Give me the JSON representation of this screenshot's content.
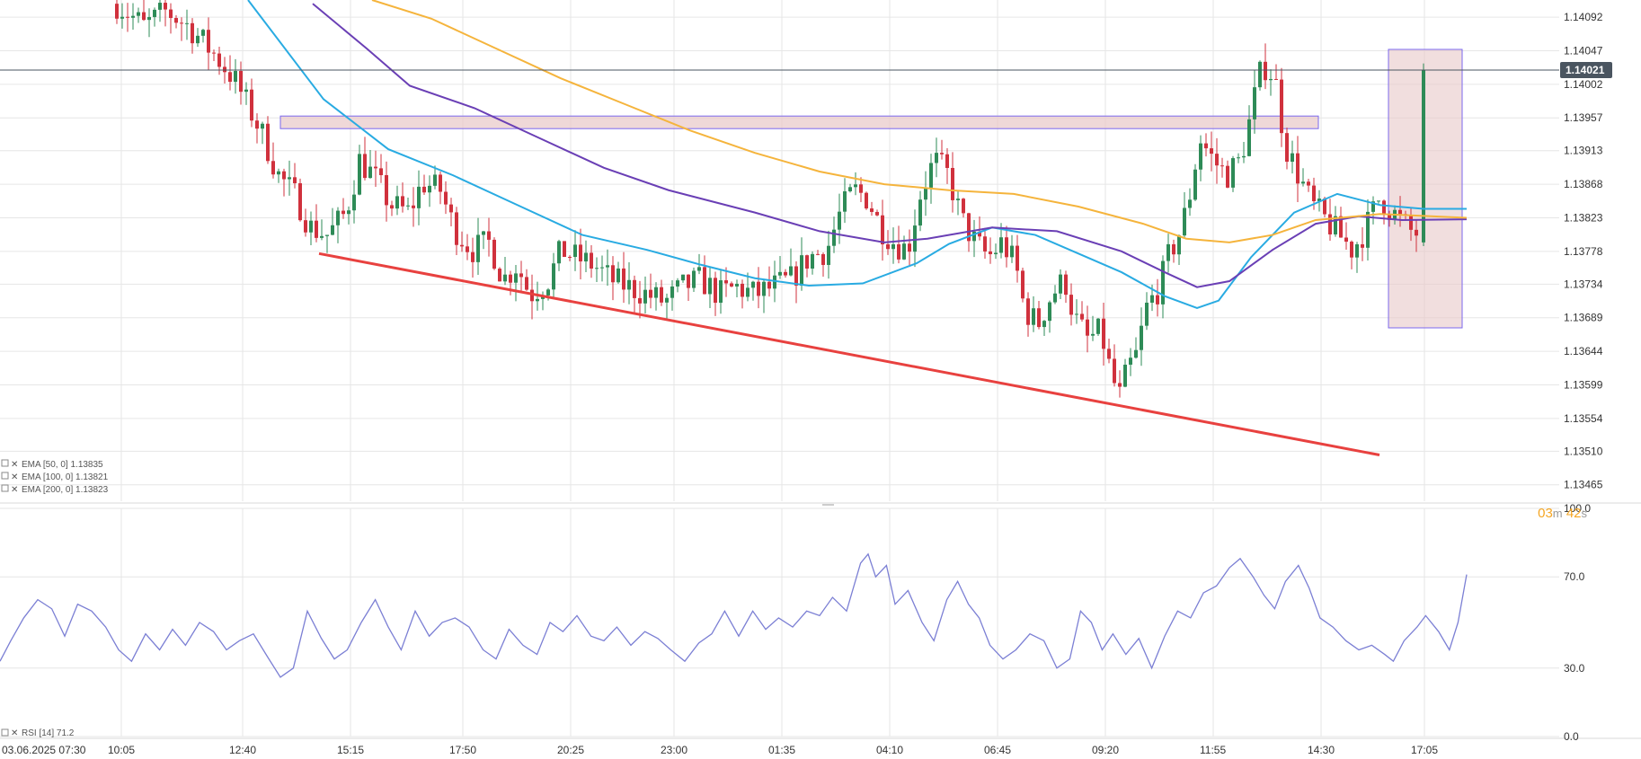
{
  "colors": {
    "bull": "#2e8b57",
    "bear": "#d0313d",
    "ema50": "#29abe2",
    "ema100": "#6a3fb5",
    "ema200": "#f5b43c",
    "trendline": "#e8413f",
    "zone_fill": "#e8c8c8",
    "zone_stroke": "#7b68ee",
    "rsi": "#7b7fd4",
    "grid": "#e6e6e6",
    "price_line": "#4a5560"
  },
  "price_panel": {
    "y_ticks": [
      "1.14092",
      "1.14047",
      "1.14002",
      "1.13957",
      "1.13913",
      "1.13868",
      "1.13823",
      "1.13778",
      "1.13734",
      "1.13689",
      "1.13644",
      "1.13599",
      "1.13554",
      "1.13510",
      "1.13465"
    ],
    "current_price": "1.14021",
    "legend": [
      {
        "label": "EMA [50, 0] 1.13835"
      },
      {
        "label": "EMA [100, 0] 1.13821"
      },
      {
        "label": "EMA [200, 0] 1.13823"
      }
    ],
    "countdown": {
      "minutes": "03",
      "min_unit": "m",
      "seconds": "42",
      "sec_unit": "s"
    }
  },
  "rsi_panel": {
    "y_ticks": [
      "100.0",
      "70.0",
      "30.0",
      "0.0"
    ],
    "legend": "RSI [14] 71.2"
  },
  "x_ticks": [
    "03.06.2025  07:30",
    "10:05",
    "12:40",
    "15:15",
    "17:50",
    "20:25",
    "23:00",
    "01:35",
    "04:10",
    "06:45",
    "09:20",
    "11:55",
    "14:30",
    "17:05"
  ],
  "chart_data": [
    {
      "type": "candlestick",
      "yrange": [
        1.13443,
        1.14115
      ],
      "xrange_index": [
        0,
        1480
      ],
      "series": [
        {
          "name": "EMA [50, 0] 1.13835",
          "points": [
            [
              230,
              1.14115
            ],
            [
              300,
              1.13982
            ],
            [
              360,
              1.13915
            ],
            [
              420,
              1.1388
            ],
            [
              480,
              1.1384
            ],
            [
              540,
              1.138
            ],
            [
              600,
              1.1378
            ],
            [
              650,
              1.1376
            ],
            [
              700,
              1.13742
            ],
            [
              750,
              1.13732
            ],
            [
              800,
              1.13735
            ],
            [
              850,
              1.13762
            ],
            [
              880,
              1.13788
            ],
            [
              920,
              1.1381
            ],
            [
              960,
              1.138
            ],
            [
              1000,
              1.13775
            ],
            [
              1040,
              1.1375
            ],
            [
              1080,
              1.13718
            ],
            [
              1110,
              1.13702
            ],
            [
              1130,
              1.13712
            ],
            [
              1160,
              1.1377
            ],
            [
              1200,
              1.1383
            ],
            [
              1240,
              1.13855
            ],
            [
              1280,
              1.1384
            ],
            [
              1320,
              1.13835
            ],
            [
              1360,
              1.13835
            ]
          ]
        },
        {
          "name": "EMA [100, 0] 1.13821",
          "points": [
            [
              290,
              1.1411
            ],
            [
              340,
              1.1405
            ],
            [
              380,
              1.14
            ],
            [
              440,
              1.1397
            ],
            [
              500,
              1.1393
            ],
            [
              560,
              1.1389
            ],
            [
              620,
              1.1386
            ],
            [
              700,
              1.1383
            ],
            [
              760,
              1.13805
            ],
            [
              820,
              1.1379
            ],
            [
              860,
              1.13795
            ],
            [
              920,
              1.1381
            ],
            [
              980,
              1.13805
            ],
            [
              1040,
              1.13778
            ],
            [
              1080,
              1.1375
            ],
            [
              1110,
              1.1373
            ],
            [
              1140,
              1.13738
            ],
            [
              1180,
              1.1378
            ],
            [
              1220,
              1.13815
            ],
            [
              1260,
              1.13825
            ],
            [
              1300,
              1.1382
            ],
            [
              1360,
              1.13821
            ]
          ]
        },
        {
          "name": "EMA [200, 0] 1.13823",
          "points": [
            [
              345,
              1.14115
            ],
            [
              400,
              1.1409
            ],
            [
              460,
              1.1405
            ],
            [
              520,
              1.1401
            ],
            [
              580,
              1.13975
            ],
            [
              640,
              1.1394
            ],
            [
              700,
              1.1391
            ],
            [
              760,
              1.13885
            ],
            [
              820,
              1.13868
            ],
            [
              880,
              1.1386
            ],
            [
              940,
              1.13855
            ],
            [
              1000,
              1.13838
            ],
            [
              1060,
              1.13815
            ],
            [
              1100,
              1.13795
            ],
            [
              1140,
              1.1379
            ],
            [
              1180,
              1.138
            ],
            [
              1220,
              1.1382
            ],
            [
              1280,
              1.13828
            ],
            [
              1360,
              1.13823
            ]
          ]
        },
        {
          "name": "RSI [14] 71.2",
          "range": [
            0,
            100
          ],
          "points": [
            [
              0,
              33
            ],
            [
              10,
              42
            ],
            [
              22,
              52
            ],
            [
              35,
              60
            ],
            [
              48,
              56
            ],
            [
              60,
              44
            ],
            [
              72,
              58
            ],
            [
              85,
              55
            ],
            [
              98,
              48
            ],
            [
              110,
              38
            ],
            [
              122,
              33
            ],
            [
              135,
              45
            ],
            [
              148,
              38
            ],
            [
              160,
              47
            ],
            [
              172,
              40
            ],
            [
              185,
              50
            ],
            [
              198,
              46
            ],
            [
              210,
              38
            ],
            [
              222,
              42
            ],
            [
              235,
              45
            ],
            [
              248,
              35
            ],
            [
              260,
              26
            ],
            [
              272,
              30
            ],
            [
              285,
              55
            ],
            [
              298,
              43
            ],
            [
              310,
              34
            ],
            [
              322,
              38
            ],
            [
              335,
              50
            ],
            [
              348,
              60
            ],
            [
              360,
              48
            ],
            [
              372,
              38
            ],
            [
              385,
              55
            ],
            [
              398,
              44
            ],
            [
              410,
              50
            ],
            [
              422,
              52
            ],
            [
              435,
              48
            ],
            [
              448,
              38
            ],
            [
              460,
              34
            ],
            [
              472,
              47
            ],
            [
              485,
              40
            ],
            [
              498,
              36
            ],
            [
              510,
              50
            ],
            [
              522,
              46
            ],
            [
              535,
              53
            ],
            [
              548,
              44
            ],
            [
              560,
              42
            ],
            [
              572,
              48
            ],
            [
              585,
              40
            ],
            [
              598,
              46
            ],
            [
              610,
              43
            ],
            [
              622,
              38
            ],
            [
              635,
              33
            ],
            [
              648,
              41
            ],
            [
              660,
              45
            ],
            [
              672,
              55
            ],
            [
              685,
              44
            ],
            [
              698,
              55
            ],
            [
              710,
              47
            ],
            [
              722,
              52
            ],
            [
              735,
              48
            ],
            [
              748,
              55
            ],
            [
              760,
              53
            ],
            [
              772,
              61
            ],
            [
              785,
              55
            ],
            [
              798,
              76
            ],
            [
              805,
              80
            ],
            [
              812,
              70
            ],
            [
              822,
              75
            ],
            [
              830,
              58
            ],
            [
              842,
              64
            ],
            [
              855,
              50
            ],
            [
              866,
              42
            ],
            [
              878,
              60
            ],
            [
              888,
              68
            ],
            [
              898,
              58
            ],
            [
              908,
              52
            ],
            [
              918,
              40
            ],
            [
              930,
              34
            ],
            [
              942,
              38
            ],
            [
              955,
              45
            ],
            [
              968,
              42
            ],
            [
              980,
              30
            ],
            [
              992,
              34
            ],
            [
              1002,
              55
            ],
            [
              1012,
              50
            ],
            [
              1022,
              38
            ],
            [
              1032,
              45
            ],
            [
              1044,
              36
            ],
            [
              1056,
              43
            ],
            [
              1068,
              30
            ],
            [
              1080,
              44
            ],
            [
              1092,
              55
            ],
            [
              1104,
              52
            ],
            [
              1116,
              63
            ],
            [
              1128,
              66
            ],
            [
              1140,
              74
            ],
            [
              1150,
              78
            ],
            [
              1162,
              70
            ],
            [
              1172,
              62
            ],
            [
              1182,
              56
            ],
            [
              1192,
              68
            ],
            [
              1204,
              75
            ],
            [
              1214,
              65
            ],
            [
              1224,
              52
            ],
            [
              1236,
              48
            ],
            [
              1248,
              42
            ],
            [
              1260,
              38
            ],
            [
              1272,
              40
            ],
            [
              1284,
              36
            ],
            [
              1292,
              33
            ],
            [
              1302,
              42
            ],
            [
              1314,
              48
            ],
            [
              1322,
              53
            ],
            [
              1334,
              46
            ],
            [
              1344,
              38
            ],
            [
              1352,
              50
            ],
            [
              1360,
              71
            ]
          ]
        }
      ]
    }
  ]
}
